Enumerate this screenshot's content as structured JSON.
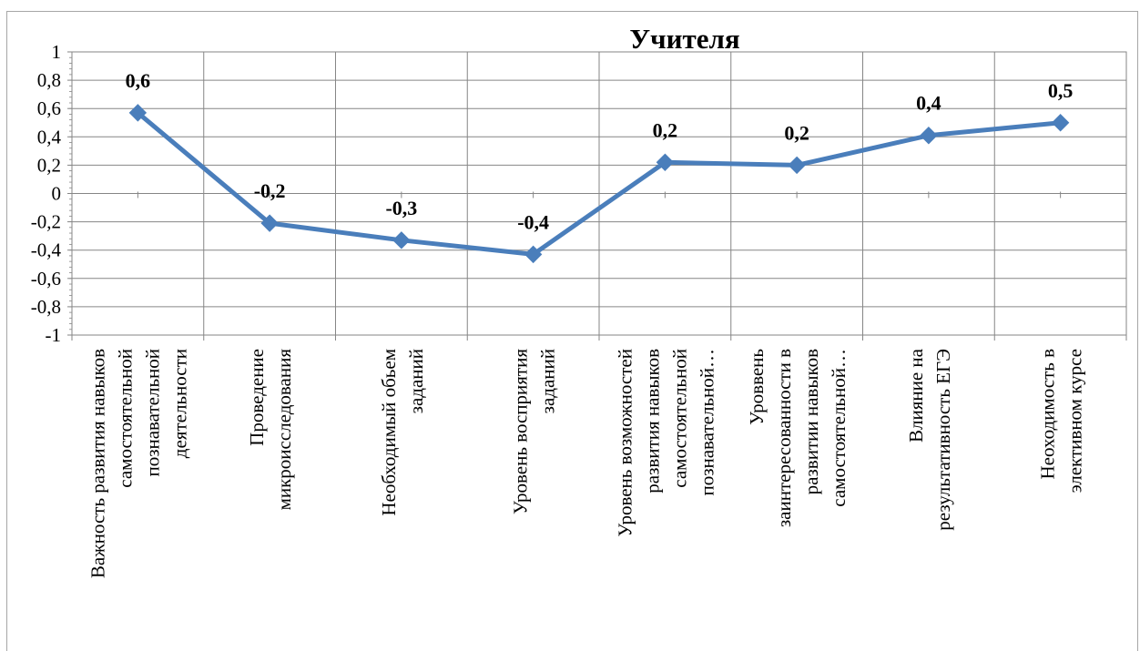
{
  "chart_data": {
    "type": "line",
    "title": "Учителя",
    "categories": [
      [
        "Важность развития навыков",
        "самостоятельной",
        "познавательной",
        "деятельности"
      ],
      [
        "Проведение",
        "микроисследования"
      ],
      [
        "Необходимый обьем",
        "заданий"
      ],
      [
        "Уровень восприятия",
        "заданий"
      ],
      [
        "Уровень возможностей",
        "развития навыков",
        "самостоятельной",
        "познавательной…"
      ],
      [
        "Уроввень",
        "заинтересованности в",
        "развитии навыков",
        "самостоятельной…"
      ],
      [
        "Влияние на",
        "результативность ЕГЭ"
      ],
      [
        "Неоходимость в",
        "элективном курсе"
      ]
    ],
    "series": [
      {
        "name": "",
        "values": [
          0.57,
          -0.21,
          -0.33,
          -0.43,
          0.22,
          0.2,
          0.41,
          0.5
        ],
        "labels": [
          "0,6",
          "-0,2",
          "-0,3",
          "-0,4",
          "0,2",
          "0,2",
          "0,4",
          "0,5"
        ],
        "color": "#4a7ebb"
      }
    ],
    "ylim": [
      -1,
      1
    ],
    "yticks": [
      "1",
      "0,8",
      "0,6",
      "0,4",
      "0,2",
      "0",
      "-0,2",
      "-0,4",
      "-0,6",
      "-0,8",
      "-1"
    ],
    "xlabel": "",
    "ylabel": "",
    "grid": true,
    "legend": "none"
  }
}
